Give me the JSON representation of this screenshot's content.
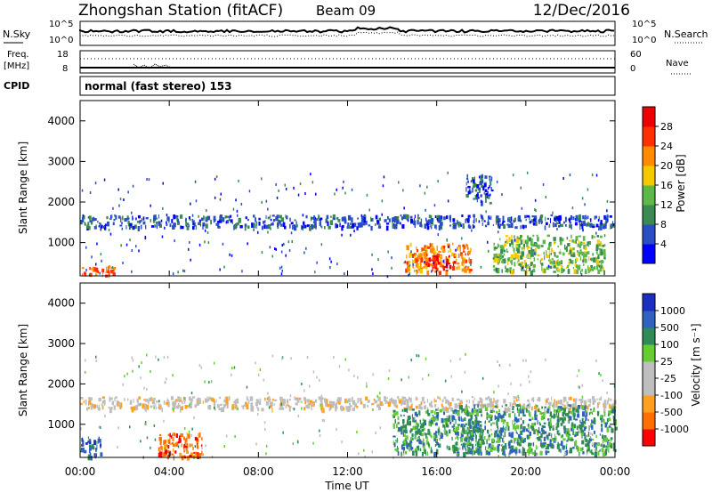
{
  "header": {
    "station": "Zhongshan Station (fitACF)",
    "beam": "Beam 09",
    "date": "12/Dec/2016"
  },
  "status_panels": {
    "nsky_label": "N.Sky",
    "nsky_tick_top": "10^5",
    "nsky_tick_bottom": "10^0",
    "nsearch_label": "N.Search",
    "nsearch_tick_top": "10^5",
    "nsearch_tick_bottom": "10^0",
    "freq_label_1": "Freq.",
    "freq_label_2": "[MHz]",
    "freq_tick_top": "18",
    "freq_tick_bottom": "8",
    "nave_label": "Nave",
    "nave_tick_top": "60",
    "nave_tick_bottom": "0",
    "cpid_label": "CPID",
    "cpid_text": "normal (fast stereo) 153"
  },
  "colors": {
    "power_scale": [
      "#0000ff",
      "#2a4fc0",
      "#3a8a52",
      "#5cb848",
      "#f5c800",
      "#ff8c00",
      "#ff3000",
      "#ee0000"
    ],
    "velocity_scale": [
      "#ff0000",
      "#ff7000",
      "#ffa020",
      "#bebebe",
      "#bebebe",
      "#66cc33",
      "#2e8b57",
      "#3060c0",
      "#1a2fbf"
    ]
  },
  "chart_data": [
    {
      "type": "heatmap",
      "quantity": "Power",
      "ylabel": "Slant Range [km]",
      "cbar_label": "Power [dB]",
      "ylim": [
        180,
        4500
      ],
      "yticks": [
        "1000",
        "2000",
        "3000",
        "4000"
      ],
      "xticks": [
        "00:00",
        "04:00",
        "08:00",
        "12:00",
        "16:00",
        "20:00",
        "00:00"
      ],
      "cbar_ticks": [
        "4",
        "8",
        "12",
        "16",
        "20",
        "24",
        "28"
      ],
      "features": [
        {
          "x": [
            0.0,
            24.0
          ],
          "y": [
            1400,
            1700
          ],
          "level": 1
        },
        {
          "x": [
            0.0,
            1.5
          ],
          "y": [
            200,
            450
          ],
          "level": 6
        },
        {
          "x": [
            14.5,
            17.5
          ],
          "y": [
            300,
            1000
          ],
          "level": 5
        },
        {
          "x": [
            15.5,
            16.8
          ],
          "y": [
            400,
            700
          ],
          "level": 7
        },
        {
          "x": [
            17.3,
            18.5
          ],
          "y": [
            2000,
            2700
          ],
          "level": 1
        },
        {
          "x": [
            18.5,
            23.5
          ],
          "y": [
            300,
            1200
          ],
          "level": 3
        }
      ]
    },
    {
      "type": "heatmap",
      "quantity": "Velocity",
      "ylabel": "Slant Range [km]",
      "xlabel": "Time UT",
      "cbar_label": "Velocity [m s⁻¹]",
      "ylim": [
        180,
        4500
      ],
      "yticks": [
        "1000",
        "2000",
        "3000",
        "4000"
      ],
      "xticks": [
        "00:00",
        "04:00",
        "08:00",
        "12:00",
        "16:00",
        "20:00",
        "00:00"
      ],
      "cbar_ticks": [
        "-1000",
        "-500",
        "-100",
        "-25",
        "25",
        "100",
        "500",
        "1000"
      ],
      "features": [
        {
          "x": [
            0.0,
            24.0
          ],
          "y": [
            1400,
            1700
          ],
          "level": 3
        },
        {
          "x": [
            0.0,
            1.0
          ],
          "y": [
            200,
            700
          ],
          "level": 7
        },
        {
          "x": [
            3.5,
            5.5
          ],
          "y": [
            200,
            800
          ],
          "level": 1
        },
        {
          "x": [
            14.0,
            18.0
          ],
          "y": [
            300,
            1400
          ],
          "level": 6
        },
        {
          "x": [
            17.0,
            24.0
          ],
          "y": [
            300,
            1500
          ],
          "level": 6
        }
      ]
    }
  ]
}
